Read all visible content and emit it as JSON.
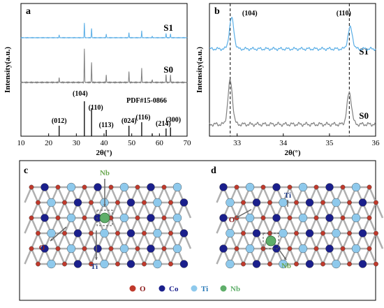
{
  "chart_data": [
    {
      "panel": "a",
      "type": "line",
      "x_ticks": [
        10,
        20,
        30,
        40,
        50,
        60,
        70
      ],
      "xlim": [
        10,
        70
      ],
      "xlabel": "2θ(°)",
      "ylabel": "Intensity(a.u.)",
      "series": [
        {
          "name": "S1",
          "color": "#5aaee6",
          "peaks": [
            {
              "x": 23.8,
              "h": 0.14
            },
            {
              "x": 32.9,
              "h": 0.75
            },
            {
              "x": 35.5,
              "h": 0.48
            },
            {
              "x": 40.8,
              "h": 0.18
            },
            {
              "x": 49.0,
              "h": 0.26
            },
            {
              "x": 53.6,
              "h": 0.35
            },
            {
              "x": 57.4,
              "h": 0.08
            },
            {
              "x": 62.4,
              "h": 0.22
            },
            {
              "x": 64.0,
              "h": 0.2
            }
          ]
        },
        {
          "name": "S0",
          "color": "#808080",
          "peaks": [
            {
              "x": 23.8,
              "h": 0.14
            },
            {
              "x": 32.9,
              "h": 1.0
            },
            {
              "x": 35.5,
              "h": 0.6
            },
            {
              "x": 40.8,
              "h": 0.22
            },
            {
              "x": 49.0,
              "h": 0.32
            },
            {
              "x": 53.6,
              "h": 0.42
            },
            {
              "x": 57.4,
              "h": 0.08
            },
            {
              "x": 62.4,
              "h": 0.24
            },
            {
              "x": 64.0,
              "h": 0.22
            }
          ]
        }
      ],
      "reference": {
        "label": "PDF#15-0866",
        "peaks": [
          {
            "x": 23.8,
            "h": 0.3,
            "hkl": "(012)"
          },
          {
            "x": 32.9,
            "h": 1.0,
            "hkl": "(104)"
          },
          {
            "x": 35.5,
            "h": 0.8,
            "hkl": "(110)"
          },
          {
            "x": 40.8,
            "h": 0.18,
            "hkl": "(113)"
          },
          {
            "x": 49.0,
            "h": 0.3,
            "hkl": "(024)"
          },
          {
            "x": 53.6,
            "h": 0.4,
            "hkl": "(116)"
          },
          {
            "x": 57.4,
            "h": 0.08,
            "hkl": ""
          },
          {
            "x": 62.4,
            "h": 0.22,
            "hkl": "(214)"
          },
          {
            "x": 64.0,
            "h": 0.25,
            "hkl": "(300)"
          }
        ]
      }
    },
    {
      "panel": "b",
      "type": "line",
      "x_ticks": [
        33,
        34,
        35,
        36
      ],
      "xlim": [
        32.4,
        36
      ],
      "xlabel": "2θ(°)",
      "ylabel": "Intensity(a.u.)",
      "reference_lines": [
        32.85,
        35.43
      ],
      "reference_labels": [
        "(104)",
        "(110)"
      ],
      "series": [
        {
          "name": "S1",
          "color": "#5aaee6",
          "peaks": [
            {
              "x": 32.88,
              "h": 0.55
            },
            {
              "x": 35.45,
              "h": 0.38
            }
          ]
        },
        {
          "name": "S0",
          "color": "#808080",
          "peaks": [
            {
              "x": 32.85,
              "h": 0.62
            },
            {
              "x": 35.43,
              "h": 0.45
            }
          ]
        }
      ]
    }
  ],
  "crystal_panels": [
    {
      "panel": "c",
      "labels": {
        "nb": "Nb",
        "ti": "Ti",
        "o": "O"
      }
    },
    {
      "panel": "d",
      "labels": {
        "nb": "Nb",
        "ti": "Ti",
        "o": "O"
      }
    }
  ],
  "legend": [
    {
      "symbol": "O",
      "color": "#c0392b"
    },
    {
      "symbol": "Co",
      "color": "#1a1f8c"
    },
    {
      "symbol": "Ti",
      "color": "#8ec9ec"
    },
    {
      "symbol": "Nb",
      "color": "#5fae6a"
    }
  ],
  "atom_colors": {
    "O": "#c0392b",
    "Co": "#1a1f8c",
    "Ti": "#8ec9ec",
    "Nb": "#5fae6a",
    "bond": "#b0b0b0"
  }
}
